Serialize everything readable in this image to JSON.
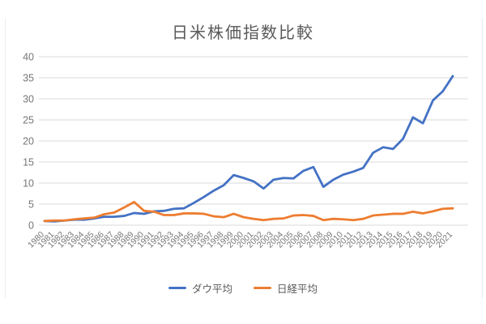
{
  "title": "日米株価指数比較",
  "chart_data": {
    "type": "line",
    "title": "日米株価指数比較",
    "x": [
      1980,
      1981,
      1982,
      1983,
      1984,
      1985,
      1986,
      1987,
      1988,
      1989,
      1990,
      1991,
      1992,
      1993,
      1994,
      1995,
      1996,
      1997,
      1998,
      1999,
      2000,
      2001,
      2002,
      2003,
      2004,
      2005,
      2006,
      2007,
      2008,
      2009,
      2010,
      2011,
      2012,
      2013,
      2014,
      2015,
      2016,
      2017,
      2018,
      2019,
      2020,
      2021
    ],
    "series": [
      {
        "name": "ダウ平均",
        "color": "#4472C4",
        "values": [
          1.0,
          0.9,
          1.1,
          1.3,
          1.3,
          1.6,
          2.0,
          2.0,
          2.2,
          2.9,
          2.7,
          3.3,
          3.4,
          3.9,
          4.0,
          5.3,
          6.7,
          8.2,
          9.5,
          11.9,
          11.2,
          10.4,
          8.7,
          10.8,
          11.2,
          11.1,
          12.9,
          13.8,
          9.1,
          10.8,
          12.0,
          12.7,
          13.6,
          17.2,
          18.5,
          18.1,
          20.5,
          25.6,
          24.2,
          29.6,
          31.8,
          35.4
        ]
      },
      {
        "name": "日経平均",
        "color": "#ED7D31",
        "values": [
          1.0,
          1.1,
          1.1,
          1.4,
          1.6,
          1.8,
          2.6,
          3.0,
          4.2,
          5.5,
          3.4,
          3.2,
          2.4,
          2.4,
          2.8,
          2.8,
          2.7,
          2.1,
          1.9,
          2.7,
          1.9,
          1.5,
          1.2,
          1.5,
          1.6,
          2.3,
          2.4,
          2.2,
          1.2,
          1.5,
          1.4,
          1.2,
          1.5,
          2.3,
          2.5,
          2.7,
          2.7,
          3.2,
          2.8,
          3.3,
          3.9,
          4.0
        ]
      }
    ],
    "ylim": [
      0,
      40
    ],
    "yticks": [
      0,
      5,
      10,
      15,
      20,
      25,
      30,
      35,
      40
    ],
    "grid": true,
    "legend_position": "bottom",
    "x_label_rotation": -45
  },
  "colors": {
    "title_text": "#595959",
    "tick_text": "#767676",
    "gridline": "#d9d9d9",
    "axis_line": "#d9d9d9",
    "dow_line": "#4472C4",
    "nikkei_line": "#ED7D31"
  }
}
